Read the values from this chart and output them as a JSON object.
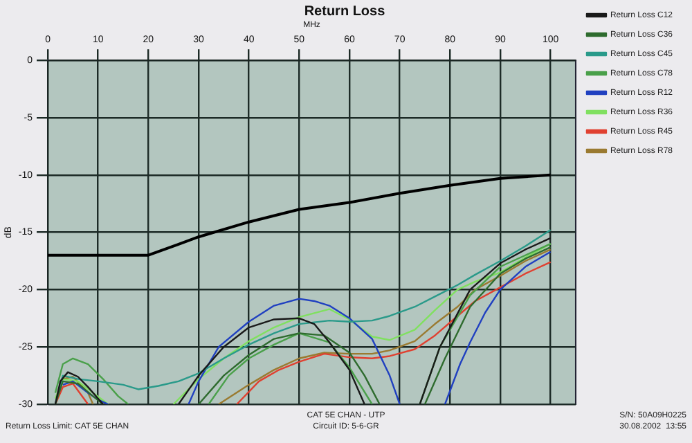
{
  "chart_data": {
    "type": "line",
    "title": "Return Loss",
    "xlabel": "MHz",
    "ylabel": "dB",
    "xlim": [
      0,
      105
    ],
    "xticks": [
      0,
      10,
      20,
      30,
      40,
      50,
      60,
      70,
      80,
      90,
      100
    ],
    "ylim": [
      -30,
      0
    ],
    "yticks": [
      -30,
      -25,
      -20,
      -15,
      -10,
      -5,
      0
    ],
    "grid": true,
    "legend": "right",
    "marker": "none",
    "line_style": "solid",
    "series": [
      {
        "color": "#000000",
        "x": [
          0,
          20,
          30,
          40,
          50,
          60,
          70,
          80,
          90,
          100
        ],
        "values": [
          -17,
          -17,
          -15.4,
          -14.1,
          -13,
          -12.4,
          -11.6,
          -10.9,
          -10.3,
          -10
        ]
      },
      {
        "name": "Return Loss C12",
        "color": "#1a1a1a",
        "x": [
          1.5,
          2.5,
          4,
          6,
          8,
          10,
          11,
          18,
          26,
          30,
          35,
          40,
          45,
          50,
          53,
          56,
          60,
          63,
          68,
          74,
          78,
          84,
          90,
          95,
          100
        ],
        "values": [
          -30,
          -28,
          -27.2,
          -27.6,
          -28.5,
          -29.5,
          -30,
          null,
          -30,
          -27.5,
          -25,
          -23.3,
          -22.6,
          -22.5,
          -23,
          -24.6,
          -27,
          -30,
          null,
          -30,
          -25,
          -20,
          -17.7,
          -16.5,
          -15.5
        ]
      },
      {
        "name": "Return Loss C36",
        "color": "#2e6b2e",
        "x": [
          1.5,
          3,
          6,
          9,
          11,
          20,
          30,
          35,
          40,
          45,
          50,
          55,
          60,
          63,
          66,
          70,
          75,
          79,
          84,
          90,
          95,
          100
        ],
        "values": [
          -30,
          -28,
          -28.2,
          -29.3,
          -30,
          null,
          -30,
          -27.5,
          -25.7,
          -24.3,
          -23.8,
          -24,
          -25.5,
          -27.5,
          -30,
          null,
          -30,
          -26,
          -21.5,
          -18.6,
          -17.3,
          -16.3
        ]
      },
      {
        "name": "Return Loss C45",
        "color": "#2a9a8a",
        "x": [
          1.5,
          3,
          6,
          10,
          15,
          18,
          22,
          26,
          30,
          35,
          40,
          45,
          50,
          56,
          60,
          64.5,
          68,
          73,
          77,
          81.5,
          85,
          90,
          95,
          100
        ],
        "values": [
          -30,
          -27.5,
          -27.8,
          -28,
          -28.3,
          -28.7,
          -28.4,
          -28,
          -27.3,
          -26,
          -24.8,
          -23.8,
          -23,
          -22.7,
          -22.8,
          -22.7,
          -22.3,
          -21.5,
          -20.6,
          -19.6,
          -18.7,
          -17.5,
          -16.2,
          -14.8
        ]
      },
      {
        "name": "Return Loss C78",
        "color": "#4aa04a",
        "x": [
          1.5,
          3,
          5,
          8,
          11,
          14,
          16,
          24,
          32,
          36,
          40,
          45,
          50,
          56,
          60,
          64.5,
          69,
          74,
          78,
          84,
          90,
          95,
          100
        ],
        "values": [
          -29,
          -26.5,
          -26,
          -26.5,
          -27.8,
          -29.3,
          -30,
          null,
          -30,
          -27.5,
          -26,
          -24.8,
          -23.8,
          -24.6,
          -26.8,
          -30,
          null,
          -30,
          -25,
          -20.5,
          -18,
          -17,
          -16
        ]
      },
      {
        "name": "Return Loss R12",
        "color": "#2040c0",
        "x": [
          3,
          5,
          8,
          10,
          12,
          20,
          28,
          30,
          34,
          40,
          45,
          50,
          53,
          56,
          60,
          64.5,
          68,
          70,
          75,
          79,
          82,
          84,
          87,
          90,
          95,
          100
        ],
        "values": [
          -28.3,
          -28,
          -29,
          -29.6,
          -30,
          null,
          -30,
          -28,
          -25,
          -22.8,
          -21.4,
          -20.8,
          -21,
          -21.4,
          -22.5,
          -24.3,
          -27.5,
          -30,
          null,
          -30,
          -26.5,
          -24.6,
          -22,
          -20,
          -18,
          -16.7
        ]
      },
      {
        "name": "Return Loss R36",
        "color": "#80e060",
        "x": [
          1.5,
          3,
          6,
          9,
          12,
          18,
          25,
          30,
          35,
          40,
          45,
          50,
          56,
          60,
          64.5,
          68,
          73,
          77,
          81.5,
          85,
          90,
          95,
          100
        ],
        "values": [
          -29.5,
          -27.8,
          -28,
          -29,
          -30,
          null,
          -30,
          -27.8,
          -26,
          -24.5,
          -23.3,
          -22.4,
          -21.7,
          -22.6,
          -24.1,
          -24.4,
          -23.5,
          -21.8,
          -20,
          -19.3,
          -18.5,
          -17.2,
          -16
        ]
      },
      {
        "name": "Return Loss R45",
        "color": "#e04030",
        "x": [
          1.5,
          3,
          5,
          8,
          20,
          37.6,
          42,
          46,
          50,
          55,
          60,
          64.5,
          68,
          73,
          77,
          81.5,
          85,
          90,
          95,
          100
        ],
        "values": [
          -30,
          -28.5,
          -28.2,
          -30,
          null,
          -30,
          -28,
          -27,
          -26.3,
          -25.6,
          -25.9,
          -26,
          -25.8,
          -25.2,
          -24,
          -22.3,
          -21,
          -19.8,
          -18.6,
          -17.6
        ]
      },
      {
        "name": "Return Loss R78",
        "color": "#9a7a30",
        "x": [
          3,
          5,
          8,
          9,
          20,
          34,
          40,
          45,
          50,
          55,
          60,
          64.5,
          68,
          73,
          77,
          81.5,
          85,
          90,
          95,
          100
        ],
        "values": [
          -27.8,
          -27.6,
          -29,
          -30,
          null,
          -30,
          -28.3,
          -27,
          -26,
          -25.5,
          -25.6,
          -25.6,
          -25.3,
          -24.5,
          -23,
          -21.5,
          -20,
          -18.8,
          -17.5,
          -16.5
        ]
      }
    ],
    "annotations": [
      "Return Loss Limit: CAT 5E CHAN",
      "CAT 5E CHAN - UTP",
      "Circuit ID: 5-6-GR",
      "S/N: 50A09H0225",
      "30.08.2002  13:55"
    ]
  }
}
